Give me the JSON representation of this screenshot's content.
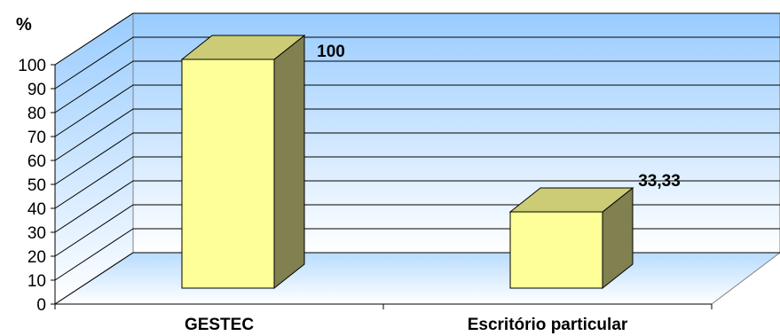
{
  "chart_data": {
    "type": "bar",
    "categories": [
      "GESTEC",
      "Escritório particular"
    ],
    "values": [
      100,
      33.33
    ],
    "value_labels": [
      "100",
      "33,33"
    ],
    "ylabel": "%",
    "ylim": [
      0,
      100
    ],
    "yticks": [
      "0",
      "10",
      "20",
      "30",
      "40",
      "50",
      "60",
      "70",
      "80",
      "90",
      "100"
    ],
    "grid": true,
    "legend": "none",
    "three_d": true,
    "colors": {
      "bar_front": "#FFFF99",
      "bar_top": "#CCCC77",
      "bar_side": "#808050",
      "wall_top": "#99CCFF",
      "wall_bottom": "#FFFFFF",
      "gridline": "#000000"
    }
  }
}
